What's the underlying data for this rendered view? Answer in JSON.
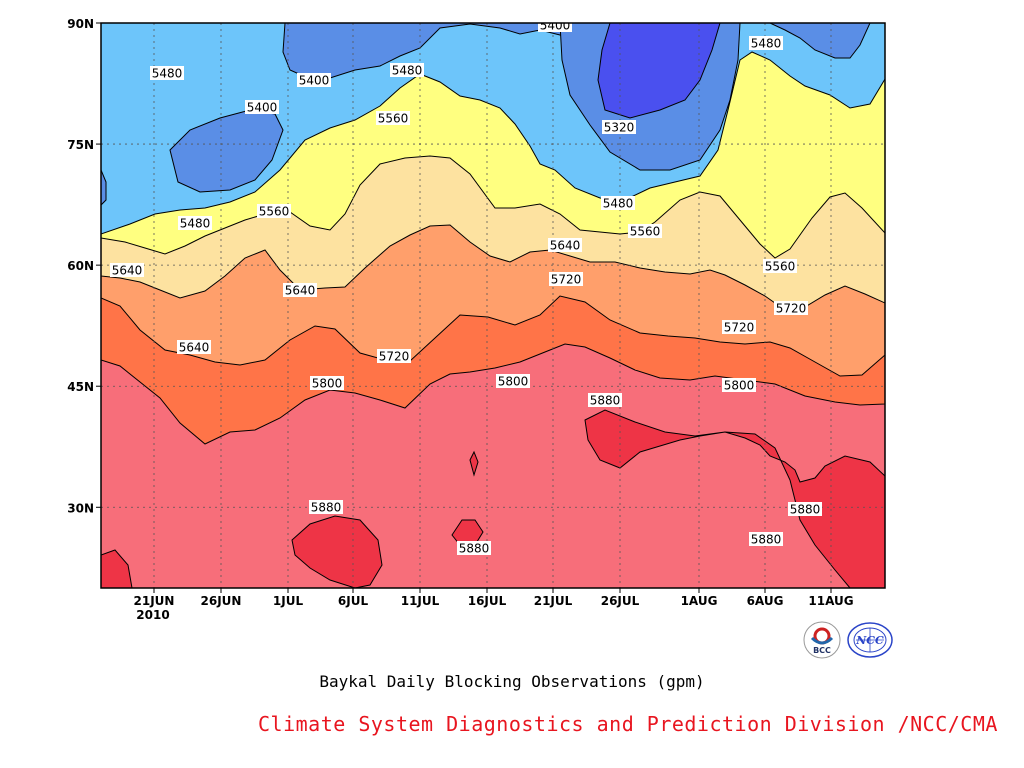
{
  "chart_data": {
    "type": "contour",
    "title": "Baykal Daily Blocking Observations (gpm)",
    "x_ticks": [
      "21JUN\n2010",
      "26JUN",
      "1JUL",
      "6JUL",
      "11JUL",
      "16JUL",
      "21JUL",
      "26JUL",
      "1AUG",
      "6AUG",
      "11AUG"
    ],
    "y_ticks": [
      "90N",
      "75N",
      "60N",
      "45N",
      "30N"
    ],
    "ylim": [
      20,
      90
    ],
    "x_range": [
      "17JUN2010",
      "16AUG2010"
    ],
    "grid": "dotted",
    "contour_levels": [
      5320,
      5400,
      5480,
      5560,
      5640,
      5720,
      5800,
      5880
    ],
    "contour_labels": [
      "5480",
      "5400",
      "5480",
      "5400",
      "5560",
      "5480",
      "5560",
      "5400",
      "5320",
      "5480",
      "5480",
      "5560",
      "5640",
      "5560",
      "5640",
      "5640",
      "5720",
      "5720",
      "5640",
      "5720",
      "5720",
      "5800",
      "5800",
      "5800",
      "5880",
      "5880",
      "5880",
      "5880",
      "5880"
    ],
    "fill_colors": {
      "lt5320": "#4a50ef",
      "5320_5400": "#5a8ee6",
      "5400_5480": "#6dc5fa",
      "5480_5560": "#ffff80",
      "5560_5640": "#fde2a0",
      "5640_5720": "#ff9f6b",
      "5720_5800": "#ff7448",
      "5800_5880": "#f76e7a",
      "gt5880": "#ee3446"
    }
  },
  "footer": {
    "title": "Baykal Daily Blocking Observations (gpm)",
    "credit": "Climate System Diagnostics and Prediction Division /NCC/CMA",
    "credit_color": "#e8151f"
  },
  "logos": {
    "bcc_text": "BCC",
    "ncc_text": "NCC"
  }
}
